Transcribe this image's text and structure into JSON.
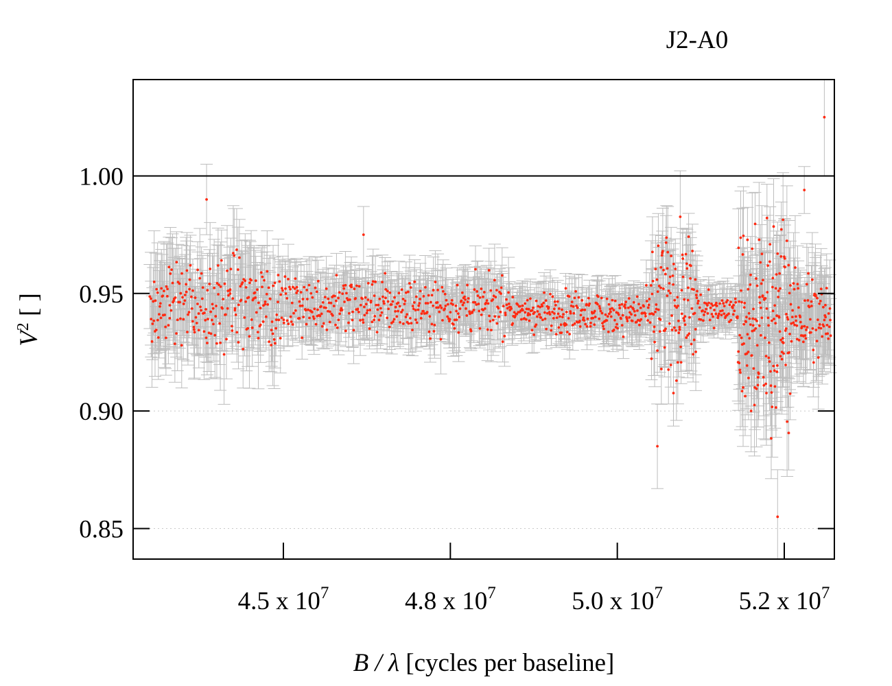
{
  "chart_data": {
    "type": "scatter",
    "title": "J2-A0",
    "xlabel": "B / λ [cycles per baseline]",
    "ylabel": "V² [ ]",
    "xlabel_parts": {
      "var": "B / λ",
      "rest": " [cycles per baseline]"
    },
    "ylabel_parts": {
      "var": "V",
      "sup": "2",
      "rest": " [ ]"
    },
    "xlim": [
      42750000,
      53250000
    ],
    "ylim": [
      0.837,
      1.041
    ],
    "x_ticks": [
      {
        "value": 45000000,
        "mantissa": "4.5",
        "times": " x 10",
        "exp": "7"
      },
      {
        "value": 47500000,
        "mantissa": "4.8",
        "times": " x 10",
        "exp": "7"
      },
      {
        "value": 50000000,
        "mantissa": "5.0",
        "times": " x 10",
        "exp": "7"
      },
      {
        "value": 52500000,
        "mantissa": "5.2",
        "times": " x 10",
        "exp": "7"
      }
    ],
    "y_ticks": [
      {
        "value": 0.85,
        "label": "0.85"
      },
      {
        "value": 0.9,
        "label": "0.90"
      },
      {
        "value": 0.95,
        "label": "0.95"
      },
      {
        "value": 1.0,
        "label": "1.00"
      }
    ],
    "reference_line": 1.0,
    "grid": "horizontal dotted",
    "colors": {
      "points": "#ff2a12",
      "errorbars": "#bdbdbd",
      "axes": "#000000",
      "grid": "#c8c8c8"
    },
    "series": [
      {
        "marker": "dot",
        "errorbars": true,
        "segments": [
          {
            "x_start": 43000000,
            "x_end": 44900000,
            "count": 210,
            "mean": 0.946,
            "spread": 0.014,
            "err": 0.016
          },
          {
            "x_start": 44900000,
            "x_end": 48400000,
            "count": 360,
            "mean": 0.945,
            "spread": 0.008,
            "err": 0.011
          },
          {
            "x_start": 48400000,
            "x_end": 50500000,
            "count": 240,
            "mean": 0.942,
            "spread": 0.006,
            "err": 0.008
          },
          {
            "x_start": 50500000,
            "x_end": 51200000,
            "count": 110,
            "mean": 0.943,
            "spread": 0.02,
            "err": 0.014
          },
          {
            "x_start": 51200000,
            "x_end": 51800000,
            "count": 60,
            "mean": 0.944,
            "spread": 0.005,
            "err": 0.007
          },
          {
            "x_start": 51800000,
            "x_end": 52600000,
            "count": 160,
            "mean": 0.94,
            "spread": 0.028,
            "err": 0.018
          },
          {
            "x_start": 52600000,
            "x_end": 53200000,
            "count": 80,
            "mean": 0.94,
            "spread": 0.013,
            "err": 0.016
          }
        ],
        "notable_points": [
          {
            "x": 53100000,
            "y": 1.025,
            "err": 0.025
          },
          {
            "x": 52400000,
            "y": 0.855,
            "err": 0.02
          },
          {
            "x": 50600000,
            "y": 0.885,
            "err": 0.018
          },
          {
            "x": 52800000,
            "y": 0.994,
            "err": 0.01
          },
          {
            "x": 43850000,
            "y": 0.99,
            "err": 0.015
          },
          {
            "x": 46200000,
            "y": 0.975,
            "err": 0.012
          }
        ]
      }
    ]
  }
}
